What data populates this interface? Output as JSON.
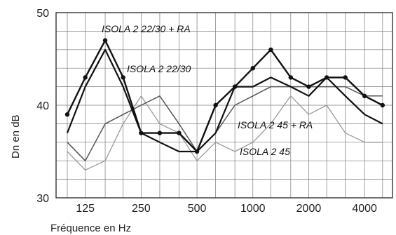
{
  "chart_data": {
    "type": "line",
    "title": "",
    "xlabel": "Fréquence en Hz",
    "ylabel": "Dn en dB",
    "ylim": [
      30,
      50
    ],
    "yticks": [
      30,
      40,
      50
    ],
    "x_scale": "log",
    "xticks": [
      125,
      250,
      500,
      1000,
      2000,
      4000
    ],
    "xlim": [
      87,
      5656
    ],
    "grid": true,
    "x": [
      100,
      125,
      160,
      200,
      250,
      315,
      400,
      500,
      630,
      800,
      1000,
      1250,
      1600,
      2000,
      2500,
      3150,
      4000,
      5000
    ],
    "series": [
      {
        "name": "ISOLA 2 22/30 + RA",
        "color": "#111111",
        "width": 2.4,
        "markers": true,
        "values": [
          39,
          43,
          47,
          43,
          37,
          37,
          37,
          35,
          40,
          42,
          44,
          46,
          43,
          42,
          43,
          43,
          41,
          40
        ]
      },
      {
        "name": "ISOLA 2 22/30",
        "color": "#111111",
        "width": 2.2,
        "markers": false,
        "values": [
          37,
          42,
          46,
          42,
          37,
          36,
          35,
          35,
          37,
          42,
          42,
          43,
          42,
          41,
          43,
          41,
          39,
          38
        ]
      },
      {
        "name": "ISOLA 2 45 + RA",
        "color": "#555555",
        "width": 1.5,
        "markers": false,
        "values": [
          36,
          34,
          38,
          39,
          40,
          41,
          38,
          35,
          37,
          40,
          41,
          42,
          42,
          42,
          42,
          42,
          41,
          41
        ]
      },
      {
        "name": "ISOLA 2 45",
        "color": "#999999",
        "width": 1.3,
        "markers": false,
        "values": [
          35,
          33,
          34,
          38,
          41,
          38,
          37,
          34,
          36,
          35,
          36,
          38,
          41,
          39,
          40,
          37,
          36,
          36
        ]
      }
    ]
  }
}
